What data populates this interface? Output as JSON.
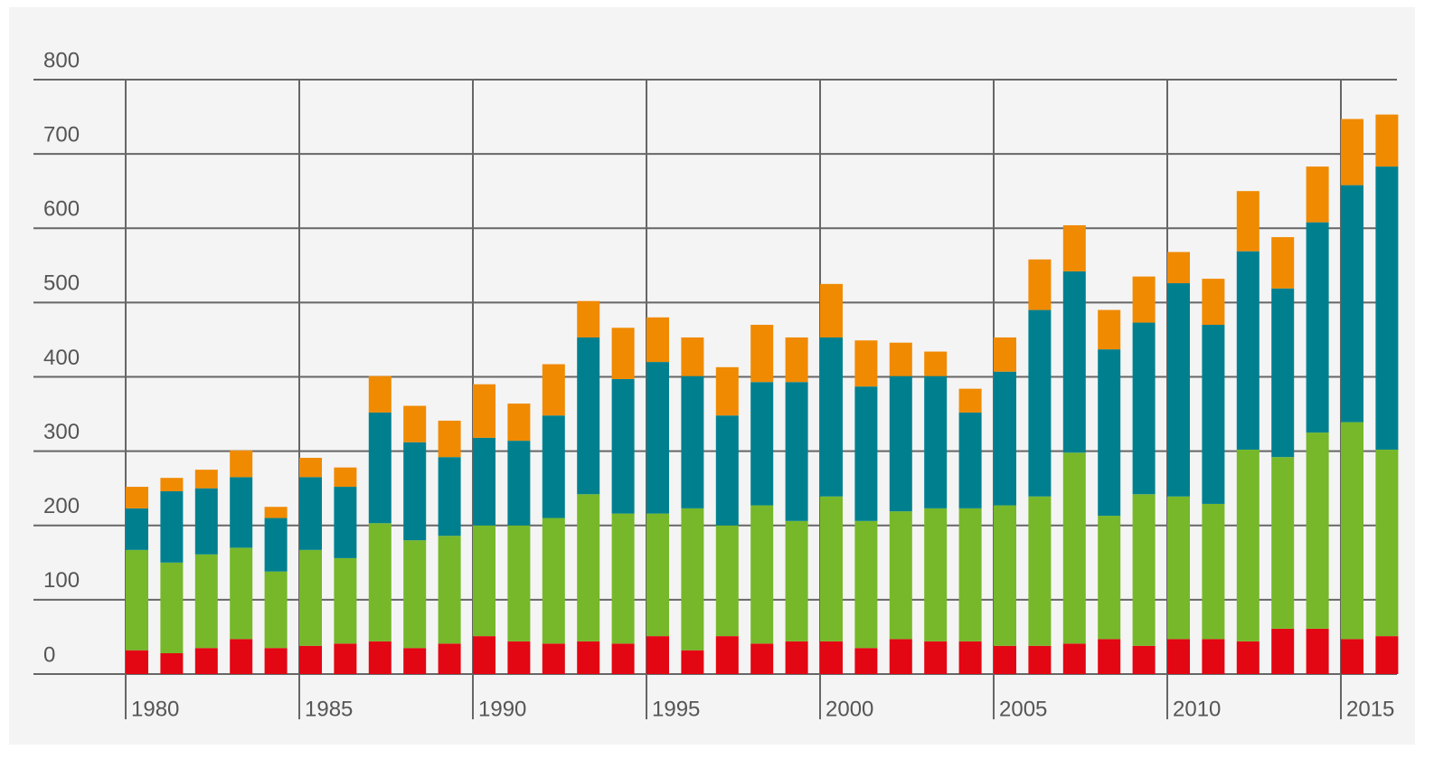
{
  "chart_data": {
    "type": "stacked_bar",
    "categories": [
      "1980",
      null,
      null,
      null,
      null,
      "1985",
      null,
      null,
      null,
      null,
      "1990",
      null,
      null,
      null,
      null,
      "1995",
      null,
      null,
      null,
      null,
      "2000",
      null,
      null,
      null,
      null,
      "2005",
      null,
      null,
      null,
      null,
      "2010",
      null,
      null,
      null,
      null,
      "2015",
      null
    ],
    "series": [
      {
        "color": "#e30613",
        "values": [
          32,
          28,
          35,
          47,
          35,
          38,
          41,
          44,
          35,
          41,
          51,
          44,
          41,
          44,
          41,
          51,
          32,
          51,
          41,
          44,
          44,
          35,
          47,
          44,
          44,
          38,
          38,
          41,
          47,
          38,
          47,
          47,
          44,
          61,
          61,
          47,
          51
        ]
      },
      {
        "color": "#76b82a",
        "values": [
          135,
          122,
          126,
          123,
          103,
          129,
          115,
          159,
          145,
          145,
          149,
          156,
          169,
          198,
          175,
          165,
          191,
          149,
          186,
          162,
          195,
          171,
          172,
          179,
          179,
          189,
          201,
          257,
          166,
          204,
          192,
          182,
          258,
          231,
          264,
          292,
          251
        ]
      },
      {
        "color": "#00808f",
        "values": [
          56,
          96,
          89,
          95,
          72,
          98,
          96,
          149,
          132,
          106,
          118,
          114,
          138,
          211,
          181,
          204,
          178,
          148,
          166,
          187,
          214,
          181,
          182,
          178,
          129,
          180,
          251,
          244,
          224,
          231,
          287,
          241,
          267,
          227,
          283,
          319,
          381
        ]
      },
      {
        "color": "#f08a00",
        "values": [
          29,
          18,
          25,
          36,
          15,
          26,
          26,
          49,
          49,
          49,
          72,
          50,
          69,
          49,
          69,
          60,
          52,
          65,
          77,
          60,
          72,
          62,
          45,
          33,
          32,
          46,
          68,
          62,
          53,
          62,
          42,
          62,
          81,
          69,
          75,
          89,
          70
        ]
      }
    ],
    "ylim": [
      0,
      800
    ],
    "yticks": [
      0,
      100,
      200,
      300,
      400,
      500,
      600,
      700,
      800
    ],
    "grid": true
  }
}
